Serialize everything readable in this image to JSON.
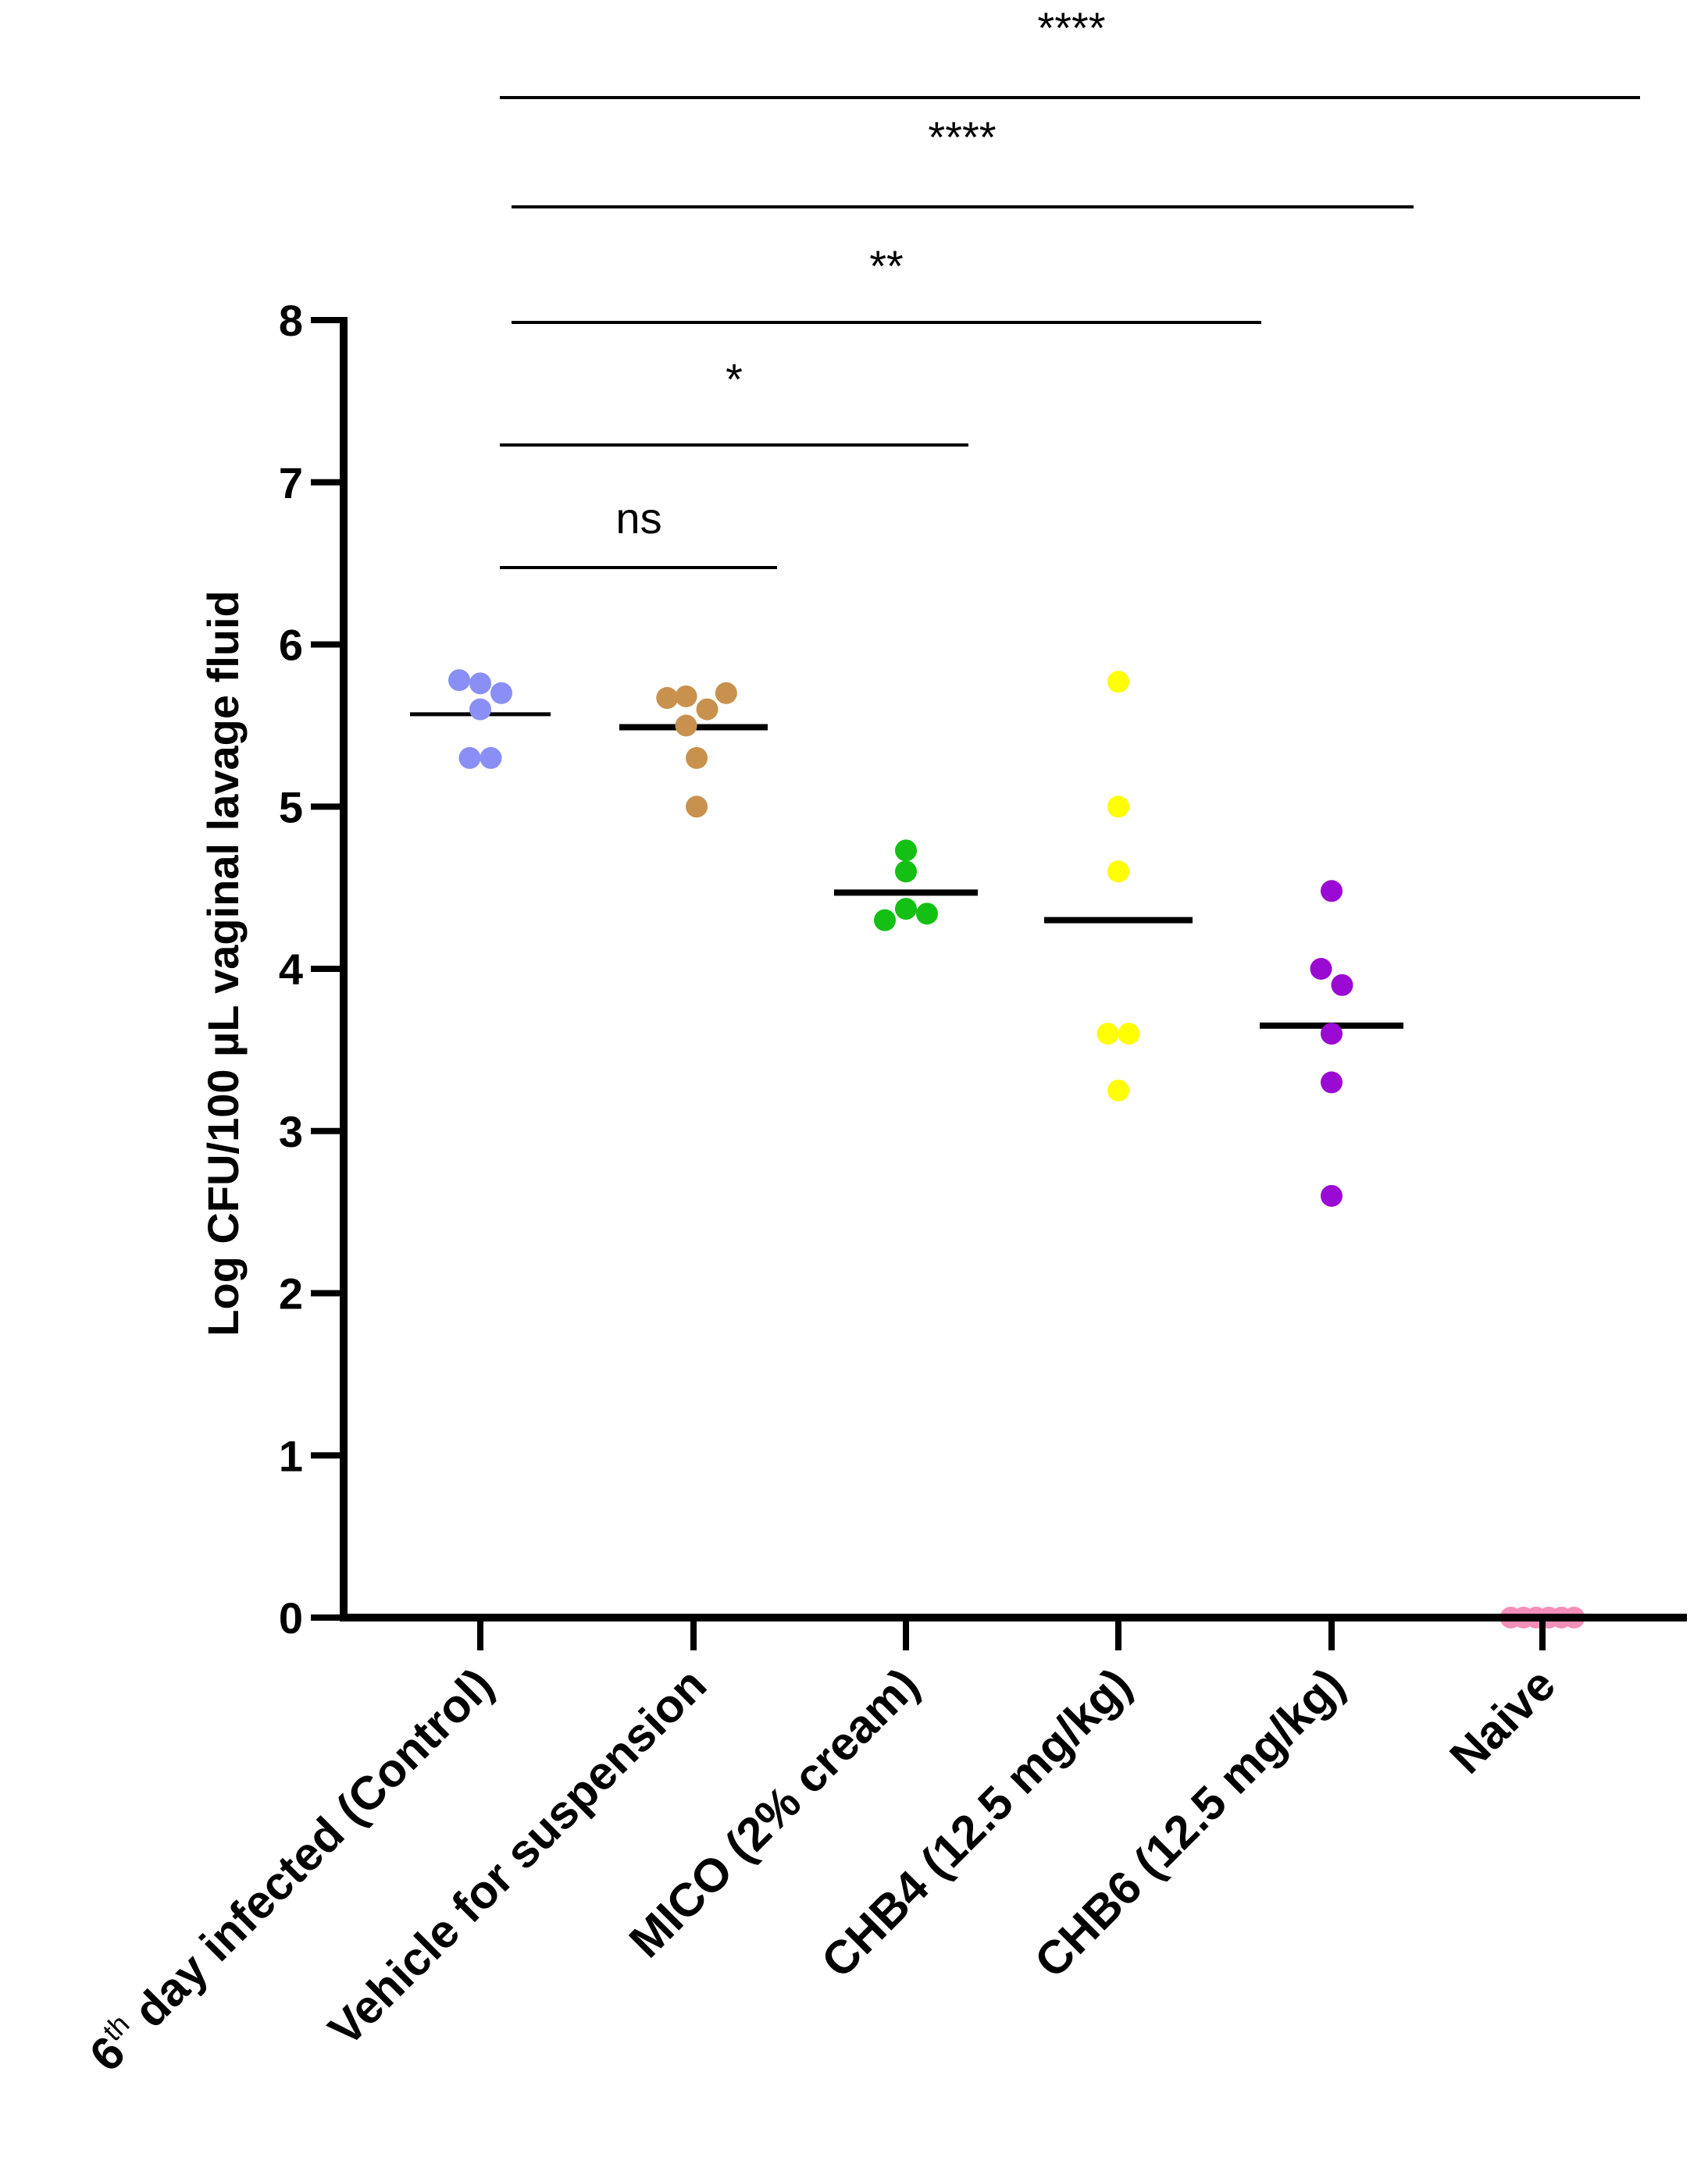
{
  "chart_data": {
    "type": "scatter",
    "ylabel": "Log CFU/100 µL vaginal lavage fluid",
    "ylim": [
      0,
      8
    ],
    "yticks": [
      0,
      1,
      2,
      3,
      4,
      5,
      6,
      7,
      8
    ],
    "categories": [
      "6th day infected (Control)",
      "Vehicle for suspension",
      "MICO (2% cream)",
      "CHB4 (12.5 mg/kg)",
      "CHB6 (12.5 mg/kg)",
      "Naive"
    ],
    "first_category_parts": {
      "number": "6",
      "superscript": "th",
      "rest": " day infected (Control)"
    },
    "series": [
      {
        "name": "6th day infected (Control)",
        "color": "#8a8ff5",
        "mean": 5.57,
        "points": [
          [
            -0.2,
            5.78
          ],
          [
            0.0,
            5.76
          ],
          [
            0.2,
            5.7
          ],
          [
            0.0,
            5.6
          ],
          [
            -0.1,
            5.3
          ],
          [
            0.1,
            5.3
          ]
        ]
      },
      {
        "name": "Vehicle for suspension",
        "color": "#c8914e",
        "mean": 5.49,
        "points": [
          [
            -0.25,
            5.67
          ],
          [
            -0.07,
            5.68
          ],
          [
            0.13,
            5.6
          ],
          [
            0.31,
            5.7
          ],
          [
            -0.07,
            5.5
          ],
          [
            0.03,
            5.3
          ],
          [
            0.03,
            5.0
          ]
        ]
      },
      {
        "name": "MICO (2% cream)",
        "color": "#13c013",
        "mean": 4.47,
        "points": [
          [
            0.0,
            4.73
          ],
          [
            0.0,
            4.6
          ],
          [
            0.0,
            4.37
          ],
          [
            -0.2,
            4.3
          ],
          [
            0.2,
            4.34
          ]
        ]
      },
      {
        "name": "CHB4 (12.5 mg/kg)",
        "color": "#ffff00",
        "mean": 4.3,
        "points": [
          [
            0.0,
            5.77
          ],
          [
            0.0,
            5.0
          ],
          [
            0.0,
            4.6
          ],
          [
            -0.1,
            3.6
          ],
          [
            0.1,
            3.6
          ],
          [
            0.0,
            3.25
          ]
        ]
      },
      {
        "name": "CHB6 (12.5 mg/kg)",
        "color": "#9a0ad2",
        "mean": 3.65,
        "points": [
          [
            0.0,
            4.48
          ],
          [
            -0.1,
            4.0
          ],
          [
            0.1,
            3.9
          ],
          [
            0.0,
            3.6
          ],
          [
            0.0,
            3.3
          ],
          [
            0.0,
            2.6
          ]
        ]
      },
      {
        "name": "Naive",
        "color": "#f48fba",
        "mean": 0,
        "points": [
          [
            -0.3,
            0
          ],
          [
            -0.18,
            0
          ],
          [
            -0.06,
            0
          ],
          [
            0.06,
            0
          ],
          [
            0.18,
            0
          ],
          [
            0.3,
            0
          ]
        ]
      }
    ],
    "significance": [
      {
        "label": "ns",
        "from": 0,
        "to": 1
      },
      {
        "label": "*",
        "from": 0,
        "to": 2
      },
      {
        "label": "**",
        "from": 0,
        "to": 3
      },
      {
        "label": "****",
        "from": 0,
        "to": 4
      },
      {
        "label": "****",
        "from": 0,
        "to": 5
      }
    ]
  }
}
